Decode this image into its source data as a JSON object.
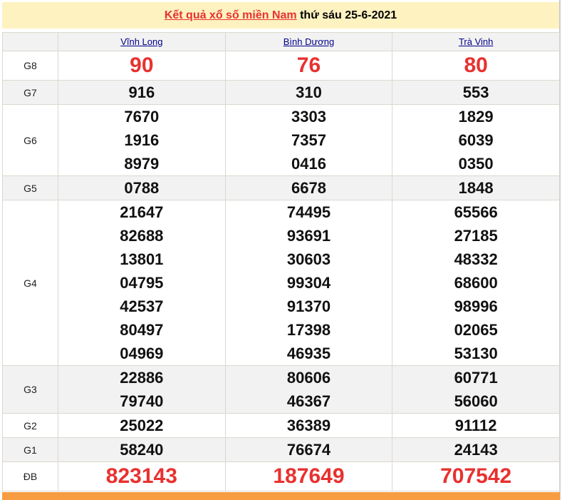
{
  "header": {
    "link": "Kết quả xổ số miền Nam",
    "suffix": " thứ sáu 25-6-2021"
  },
  "provinces": [
    "Vĩnh Long",
    "Bình Dương",
    "Trà Vinh"
  ],
  "prizes": [
    {
      "label": "G8",
      "values": [
        [
          "90"
        ],
        [
          "76"
        ],
        [
          "80"
        ]
      ],
      "style": "big"
    },
    {
      "label": "G7",
      "values": [
        [
          "916"
        ],
        [
          "310"
        ],
        [
          "553"
        ]
      ]
    },
    {
      "label": "G6",
      "values": [
        [
          "7670",
          "1916",
          "8979"
        ],
        [
          "3303",
          "7357",
          "0416"
        ],
        [
          "1829",
          "6039",
          "0350"
        ]
      ]
    },
    {
      "label": "G5",
      "values": [
        [
          "0788"
        ],
        [
          "6678"
        ],
        [
          "1848"
        ]
      ]
    },
    {
      "label": "G4",
      "values": [
        [
          "21647",
          "82688",
          "13801",
          "04795",
          "42537",
          "80497",
          "04969"
        ],
        [
          "74495",
          "93691",
          "30603",
          "99304",
          "91370",
          "17398",
          "46935"
        ],
        [
          "65566",
          "27185",
          "48332",
          "68600",
          "98996",
          "02065",
          "53130"
        ]
      ]
    },
    {
      "label": "G3",
      "values": [
        [
          "22886",
          "79740"
        ],
        [
          "80606",
          "46367"
        ],
        [
          "60771",
          "56060"
        ]
      ]
    },
    {
      "label": "G2",
      "values": [
        [
          "25022"
        ],
        [
          "36389"
        ],
        [
          "91112"
        ]
      ]
    },
    {
      "label": "G1",
      "values": [
        [
          "58240"
        ],
        [
          "76674"
        ],
        [
          "24143"
        ]
      ]
    },
    {
      "label": "ĐB",
      "values": [
        [
          "823143"
        ],
        [
          "187649"
        ],
        [
          "707542"
        ]
      ],
      "style": "big"
    }
  ],
  "colors": {
    "accent": "#e8312f",
    "title_bg": "#fdf2c0",
    "footer": "#f89c42"
  }
}
